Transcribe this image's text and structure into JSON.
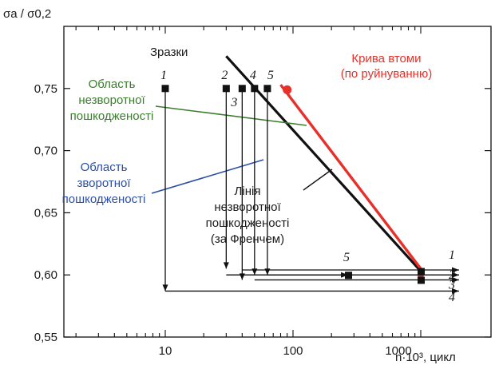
{
  "chart_data": {
    "type": "line",
    "y_axis_label": "σa / σ0,2",
    "x_axis_label": "n·10³, цикл",
    "x_scale": "log",
    "xlim": [
      1,
      1000
    ],
    "ylim": [
      0.55,
      0.8
    ],
    "x_ticks": [
      10,
      100,
      1000
    ],
    "y_ticks": [
      0.55,
      0.6,
      0.65,
      0.7,
      0.75
    ],
    "x_tick_labels": [
      "10",
      "100",
      "1000"
    ],
    "y_tick_labels": [
      "0,55",
      "0,60",
      "0,65",
      "0,70",
      "0,75"
    ],
    "specimens_title": "Зразки",
    "fatigue_curve": {
      "name": "Крива втоми (по руйнуванню)",
      "label_line1": "Крива втоми",
      "label_line2": "(по руйнуванню)",
      "color": "#e8302a",
      "points": [
        {
          "x": 80,
          "y": 0.753
        },
        {
          "x": 1000,
          "y": 0.605
        }
      ],
      "marker": {
        "x": 90,
        "y": 0.749
      }
    },
    "french_line": {
      "label_lines": [
        "Лінія",
        "незворотної",
        "пошкодженості",
        "(за Френчем)"
      ],
      "color": "#111111",
      "points": [
        {
          "x": 30,
          "y": 0.776
        },
        {
          "x": 1000,
          "y": 0.603
        }
      ]
    },
    "irreversible_region": {
      "label_lines": [
        "Область",
        "незворотної",
        "пошкодженості"
      ],
      "color": "#3a7d2c"
    },
    "reversible_region": {
      "label_lines": [
        "Область",
        "зворотної",
        "пошкодженості"
      ],
      "color": "#2b4fa6"
    },
    "specimens": [
      {
        "id": "1",
        "x": 10,
        "y0": 0.75,
        "y1": 0.587,
        "end_x": 1000,
        "end_y": 0.605,
        "end_label": "1"
      },
      {
        "id": "2",
        "x": 30,
        "y0": 0.75,
        "y1": 0.605,
        "end_x": 1000,
        "end_y": 0.6,
        "end_label": "2"
      },
      {
        "id": "3",
        "x": 40,
        "y0": 0.75,
        "y1": 0.596,
        "end_x": 1000,
        "end_y": 0.595,
        "end_label": "3"
      },
      {
        "id": "4",
        "x": 50,
        "y0": 0.75,
        "y1": 0.6,
        "end_x": 1000,
        "end_y": 0.587,
        "end_label": "4"
      },
      {
        "id": "5",
        "x": 63,
        "y0": 0.75,
        "y1": 0.6,
        "end_x": 270,
        "end_y": 0.6,
        "end_label": "5"
      }
    ]
  }
}
